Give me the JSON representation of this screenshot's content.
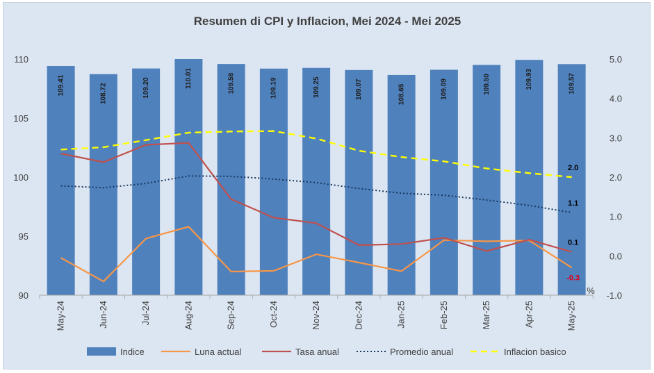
{
  "chart_data": {
    "type": "bar",
    "title": "Resumen di CPI y Inflacion, Mei 2024 - Mei 2025",
    "categories": [
      "May-24",
      "Jun-24",
      "Jul-24",
      "Aug-24",
      "Sep-24",
      "Oct-24",
      "Nov-24",
      "Dec-24",
      "Jan-25",
      "Feb-25",
      "Mar-25",
      "Apr-25",
      "May-25"
    ],
    "left_axis": {
      "ylim": [
        90,
        110
      ],
      "ticks": [
        "90",
        "95",
        "100",
        "105",
        "110"
      ]
    },
    "right_axis": {
      "ylim": [
        -1.0,
        5.0
      ],
      "ticks": [
        "-1.0",
        "0.0",
        "1.0",
        "2.0",
        "3.0",
        "4.0",
        "5.0"
      ],
      "unit_label": "%"
    },
    "grid": false,
    "legend_position": "bottom",
    "series": [
      {
        "name": "Indice",
        "type": "bar",
        "axis": "left",
        "color": "#4f81bd",
        "values": [
          109.41,
          108.72,
          109.2,
          110.01,
          109.58,
          109.19,
          109.25,
          109.07,
          108.65,
          109.09,
          109.5,
          109.93,
          109.57
        ],
        "labels": [
          "109.41",
          "108.72",
          "109.20",
          "110.01",
          "109.58",
          "109.19",
          "109.25",
          "109.07",
          "108.65",
          "109.09",
          "109.50",
          "109.93",
          "109.57"
        ]
      },
      {
        "name": "Luna actual",
        "type": "line",
        "axis": "right",
        "color": "#f79646",
        "values": [
          -0.05,
          -0.65,
          0.44,
          0.74,
          -0.4,
          -0.38,
          0.04,
          -0.17,
          -0.39,
          0.4,
          0.37,
          0.39,
          -0.3
        ],
        "end_label": "-0.3",
        "end_label_color": "#e0001b"
      },
      {
        "name": "Tasa anual",
        "type": "line",
        "axis": "right",
        "color": "#c0504d",
        "values": [
          2.6,
          2.38,
          2.82,
          2.87,
          1.44,
          0.97,
          0.83,
          0.27,
          0.3,
          0.46,
          0.12,
          0.41,
          0.1
        ],
        "end_label": "0.1",
        "end_label_color": "#000000"
      },
      {
        "name": "Promedio anual",
        "type": "dotted",
        "axis": "right",
        "color": "#17375e",
        "values": [
          1.78,
          1.73,
          1.84,
          2.03,
          2.02,
          1.95,
          1.86,
          1.71,
          1.59,
          1.54,
          1.42,
          1.28,
          1.1
        ],
        "end_label": "1.1",
        "end_label_color": "#000000"
      },
      {
        "name": "Inflacion basico",
        "type": "dashed",
        "axis": "right",
        "color": "#ffff00",
        "values": [
          2.7,
          2.76,
          2.94,
          3.13,
          3.16,
          3.17,
          2.98,
          2.67,
          2.51,
          2.4,
          2.22,
          2.1,
          2.0
        ],
        "end_label": "2.0",
        "end_label_color": "#000000"
      }
    ]
  }
}
